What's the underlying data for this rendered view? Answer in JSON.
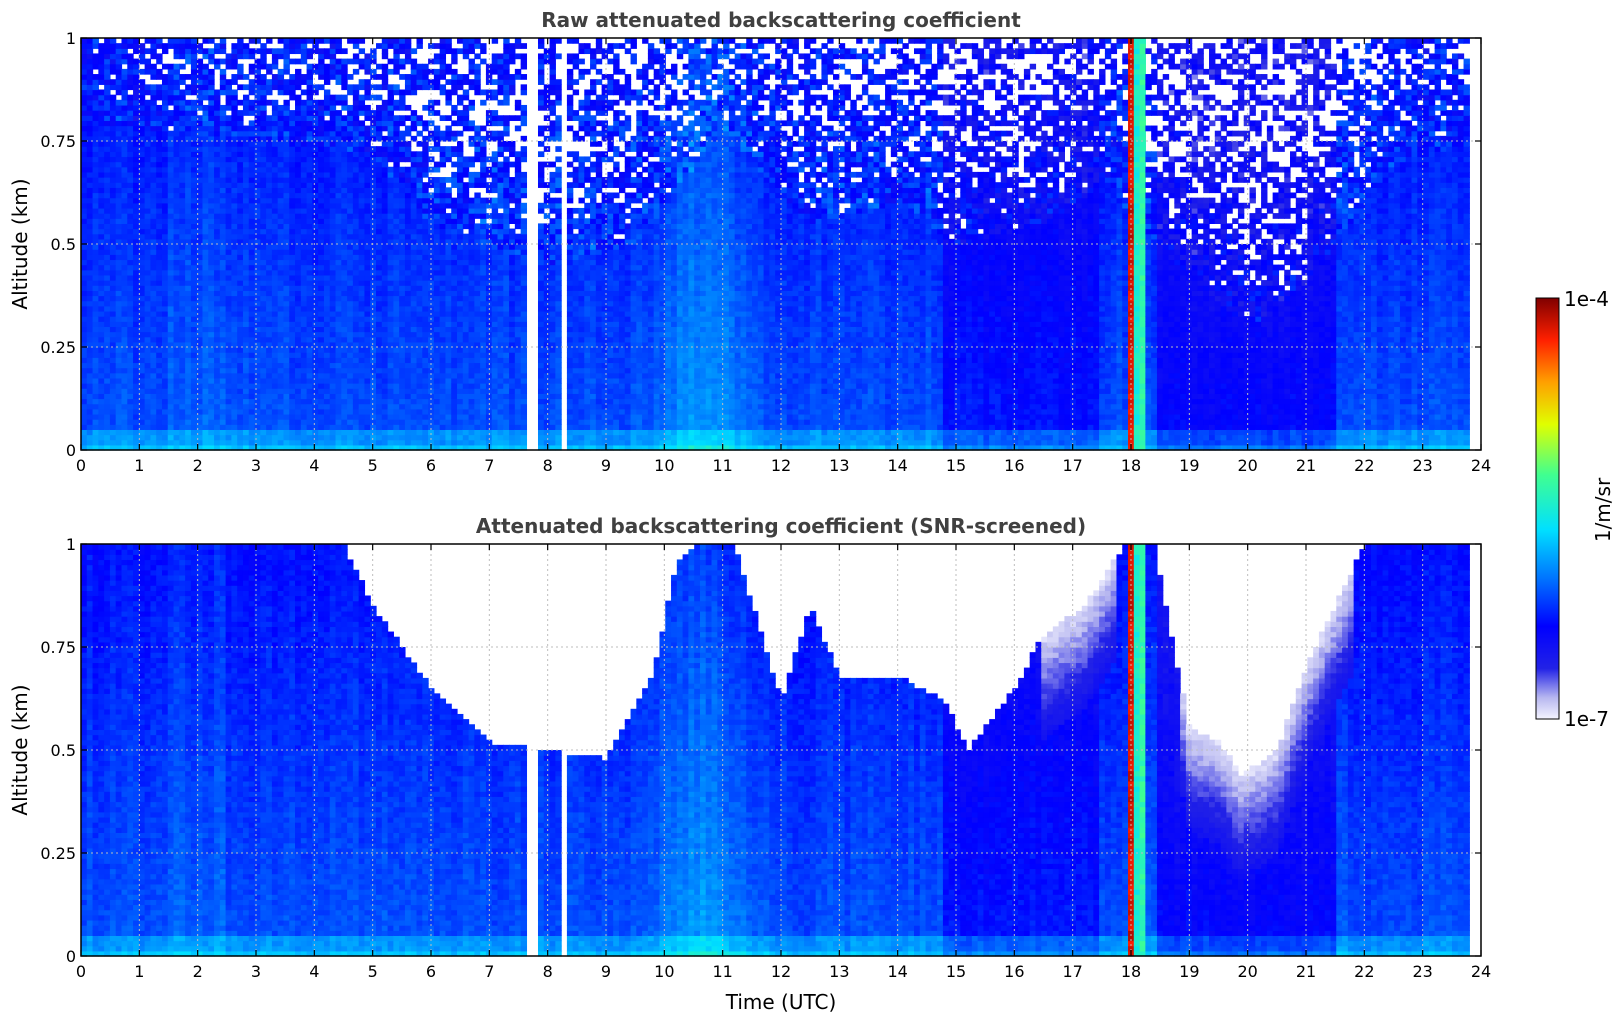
{
  "chart_data": [
    {
      "type": "heatmap",
      "title": "Raw attenuated backscattering coefficient",
      "ylabel": "Altitude (km)",
      "xlabel": "",
      "xlim": [
        0,
        24
      ],
      "ylim": [
        0,
        1
      ],
      "x_ticks": [
        "0",
        "1",
        "2",
        "3",
        "4",
        "5",
        "6",
        "7",
        "8",
        "9",
        "10",
        "11",
        "12",
        "13",
        "14",
        "15",
        "16",
        "17",
        "18",
        "19",
        "20",
        "21",
        "22",
        "23",
        "24"
      ],
      "y_ticks": [
        "0",
        "0.25",
        "0.5",
        "0.75",
        "1"
      ],
      "grid": true,
      "features": [
        {
          "x_range": [
            7.7,
            8.9
          ],
          "description_values": "thin vertical white gaps"
        },
        {
          "x_range": [
            17.95,
            18.3
          ],
          "level": "high (up to 1e-4)"
        },
        {
          "x_range": [
            9.5,
            11.8
          ],
          "level": "enhanced (~1e-5)"
        }
      ]
    },
    {
      "type": "heatmap",
      "title": "Attenuated backscattering coefficient (SNR-screened)",
      "ylabel": "Altitude (km)",
      "xlabel": "Time (UTC)",
      "xlim": [
        0,
        24
      ],
      "ylim": [
        0,
        1
      ],
      "x_ticks": [
        "0",
        "1",
        "2",
        "3",
        "4",
        "5",
        "6",
        "7",
        "8",
        "9",
        "10",
        "11",
        "12",
        "13",
        "14",
        "15",
        "16",
        "17",
        "18",
        "19",
        "20",
        "21",
        "22",
        "23",
        "24"
      ],
      "y_ticks": [
        "0",
        "0.25",
        "0.5",
        "0.75",
        "1"
      ],
      "grid": true,
      "screened_top_altitude_km": {
        "x": [
          0,
          4.5,
          5,
          6,
          7,
          8,
          9,
          9.8,
          10.2,
          10.6,
          11.2,
          12,
          12.5,
          13,
          14,
          14.8,
          15.2,
          16,
          16.5,
          17.2,
          17.9,
          18.4,
          19,
          19.5,
          19.9,
          20.5,
          21,
          21.5,
          22,
          23.8
        ],
        "y": [
          1,
          1,
          0.85,
          0.65,
          0.52,
          0.5,
          0.48,
          0.68,
          0.95,
          1,
          1,
          0.62,
          0.85,
          0.68,
          0.68,
          0.62,
          0.5,
          0.65,
          0.78,
          0.85,
          1,
          1,
          0.55,
          0.52,
          0.44,
          0.5,
          0.7,
          0.85,
          1,
          1
        ]
      }
    }
  ],
  "colorbar": {
    "label": "1/m/sr",
    "max_label": "1e-4",
    "min_label": "1e-7",
    "scale": "log",
    "min": 1e-07,
    "max": 0.0001
  }
}
